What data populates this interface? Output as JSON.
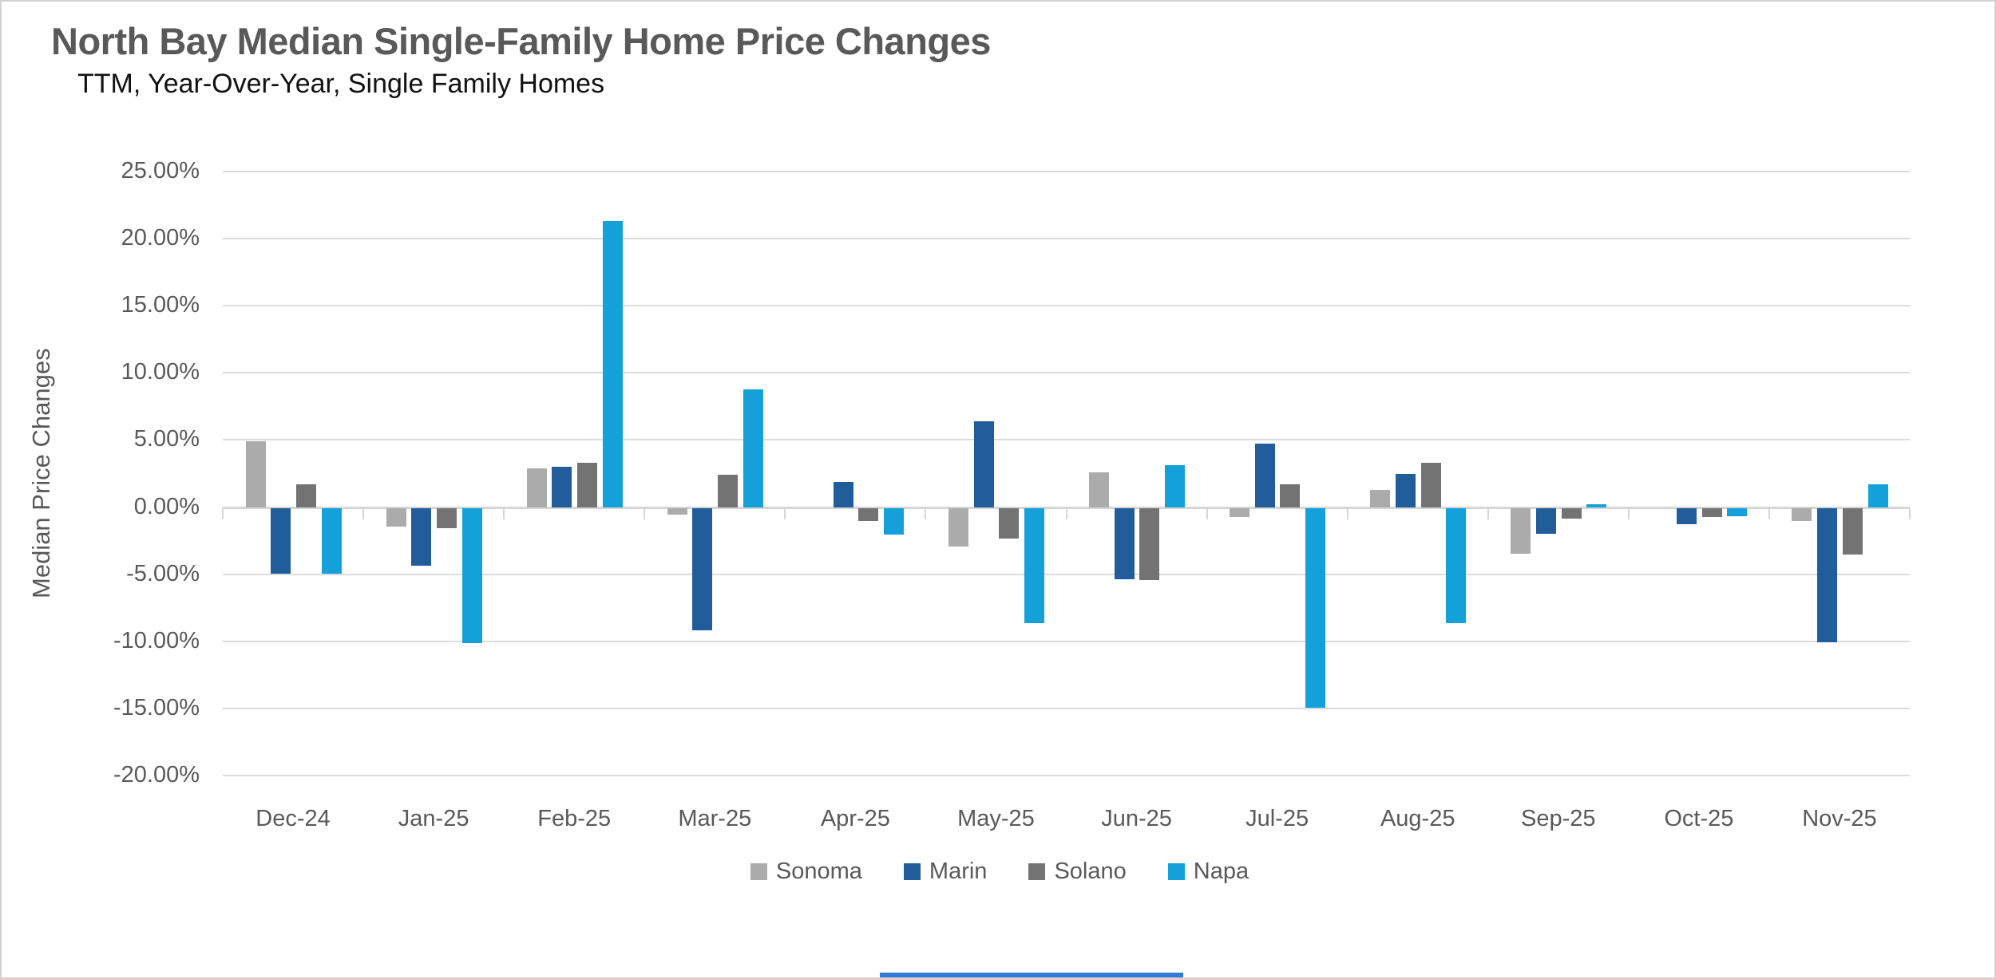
{
  "chart_data": {
    "type": "bar",
    "title": "North Bay Median Single-Family Home Price Changes",
    "subtitle": "TTM, Year-Over-Year, Single Family Homes",
    "ylabel": "Median Price Changes",
    "xlabel": "",
    "ylim": [
      -20,
      25
    ],
    "ytick_step": 5,
    "grid": true,
    "legend_position": "bottom",
    "y_tick_labels": [
      "25.00%",
      "20.00%",
      "15.00%",
      "10.00%",
      "5.00%",
      "0.00%",
      "-5.00%",
      "-10.00%",
      "-15.00%",
      "-20.00%"
    ],
    "categories": [
      "Dec-24",
      "Jan-25",
      "Feb-25",
      "Mar-25",
      "Apr-25",
      "May-25",
      "Jun-25",
      "Jul-25",
      "Aug-25",
      "Sep-25",
      "Oct-25",
      "Nov-25"
    ],
    "series": [
      {
        "name": "Sonoma",
        "color": "#ABABAB",
        "values": [
          4.9,
          -1.4,
          2.9,
          -0.5,
          0.0,
          -2.9,
          2.6,
          -0.7,
          1.3,
          -3.4,
          0.0,
          -1.0
        ]
      },
      {
        "name": "Marin",
        "color": "#215C9B",
        "values": [
          -4.9,
          -4.3,
          3.0,
          -9.1,
          1.9,
          6.4,
          -5.3,
          4.7,
          2.5,
          -1.9,
          -1.2,
          -10.0
        ]
      },
      {
        "name": "Solano",
        "color": "#737373",
        "values": [
          1.7,
          -1.5,
          3.3,
          2.4,
          -1.0,
          -2.3,
          -5.4,
          1.7,
          3.3,
          -0.8,
          -0.7,
          -3.5
        ]
      },
      {
        "name": "Napa",
        "color": "#14A0D9",
        "values": [
          -4.9,
          -10.1,
          21.3,
          8.8,
          -2.0,
          -8.6,
          3.1,
          -14.9,
          -8.6,
          0.2,
          -0.6,
          1.7
        ]
      }
    ]
  },
  "accents": {
    "bottom_strip_color": "#2E7CD6",
    "gridline_color": "#DBDBDB"
  }
}
